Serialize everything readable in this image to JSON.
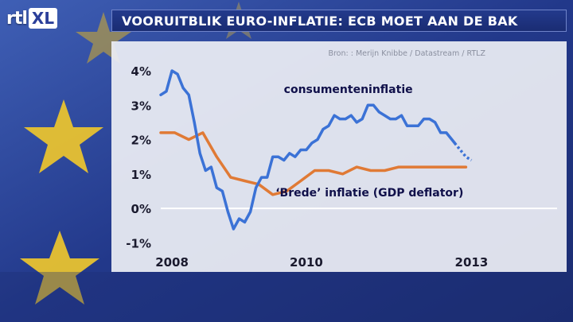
{
  "logo": {
    "rtl": "rtl",
    "xl": "XL"
  },
  "header": {
    "title": "VOORUITBLIK EURO-INFLATIE: ECB MOET AAN DE BAK"
  },
  "chart_data": {
    "type": "line",
    "source": "Bron: :  Merijn Knibbe / Datastream / RTLZ",
    "x_tick_labels": [
      "2008",
      "2010",
      "2013"
    ],
    "y_tick_labels": [
      "4%",
      "3%",
      "2%",
      "1%",
      "0%",
      "-1%"
    ],
    "y_ticks": [
      4,
      3,
      2,
      1,
      0,
      -1
    ],
    "ylim": [
      -1.2,
      4.3
    ],
    "xlim": [
      2007.5,
      2013.3
    ],
    "grid": false,
    "series": [
      {
        "name": "consumenteninflatie",
        "color": "#3b72d6",
        "dashed_tail_from": 2012.75,
        "x": [
          2007.5,
          2007.6,
          2007.7,
          2007.8,
          2007.9,
          2008.0,
          2008.1,
          2008.2,
          2008.3,
          2008.4,
          2008.5,
          2008.6,
          2008.7,
          2008.8,
          2008.9,
          2009.0,
          2009.1,
          2009.2,
          2009.3,
          2009.4,
          2009.5,
          2009.6,
          2009.7,
          2009.8,
          2009.9,
          2010.0,
          2010.1,
          2010.2,
          2010.3,
          2010.4,
          2010.5,
          2010.6,
          2010.7,
          2010.8,
          2010.9,
          2011.0,
          2011.1,
          2011.2,
          2011.3,
          2011.4,
          2011.5,
          2011.6,
          2011.7,
          2011.8,
          2011.9,
          2012.0,
          2012.1,
          2012.2,
          2012.3,
          2012.4,
          2012.5,
          2012.6,
          2012.7,
          2012.75,
          2012.85,
          2012.95,
          2013.05
        ],
        "y": [
          3.3,
          3.4,
          4.0,
          3.9,
          3.5,
          3.3,
          2.5,
          1.6,
          1.1,
          1.2,
          0.6,
          0.5,
          -0.1,
          -0.6,
          -0.3,
          -0.4,
          -0.1,
          0.6,
          0.9,
          0.9,
          1.5,
          1.5,
          1.4,
          1.6,
          1.5,
          1.7,
          1.7,
          1.9,
          2.0,
          2.3,
          2.4,
          2.7,
          2.6,
          2.6,
          2.7,
          2.5,
          2.6,
          3.0,
          3.0,
          2.8,
          2.7,
          2.6,
          2.6,
          2.7,
          2.4,
          2.4,
          2.4,
          2.6,
          2.6,
          2.5,
          2.2,
          2.2,
          2.0,
          1.9,
          1.7,
          1.5,
          1.4
        ]
      },
      {
        "name": "‘Brede’ inflatie (GDP deflator)",
        "color": "#e07a35",
        "x": [
          2007.5,
          2007.75,
          2008.0,
          2008.25,
          2008.5,
          2008.75,
          2009.0,
          2009.25,
          2009.5,
          2009.75,
          2010.0,
          2010.25,
          2010.5,
          2010.75,
          2011.0,
          2011.25,
          2011.5,
          2011.75,
          2012.0,
          2012.25,
          2012.5,
          2012.75,
          2012.95
        ],
        "y": [
          2.2,
          2.2,
          2.0,
          2.2,
          1.5,
          0.9,
          0.8,
          0.7,
          0.4,
          0.5,
          0.8,
          1.1,
          1.1,
          1.0,
          1.2,
          1.1,
          1.1,
          1.2,
          1.2,
          1.2,
          1.2,
          1.2,
          1.2
        ]
      }
    ],
    "x_tick_positions": [
      2007.7,
      2010.1,
      2013.05
    ]
  }
}
